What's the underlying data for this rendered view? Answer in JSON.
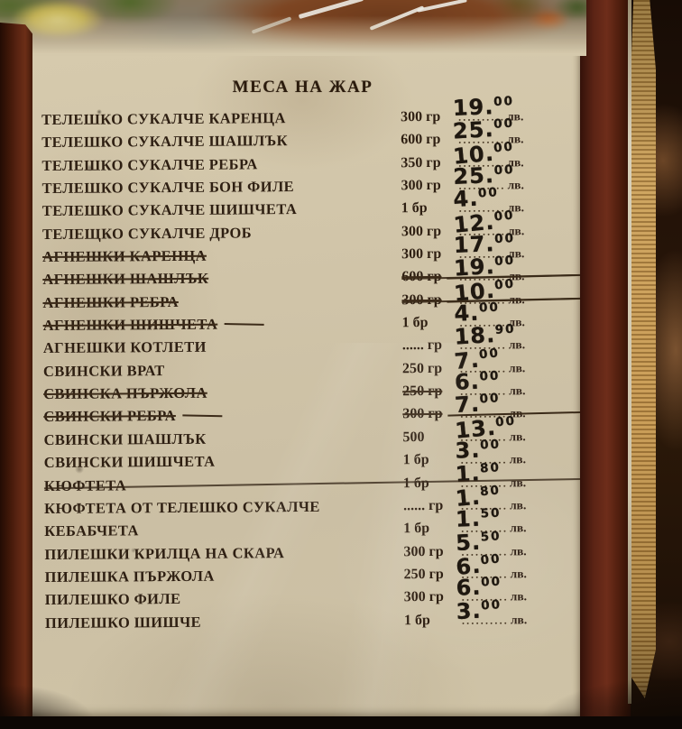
{
  "title": "МЕСА НА ЖАР",
  "page": {
    "currency": "лв.",
    "weight_unit_grams": "гр",
    "weight_unit_piece": "бр"
  },
  "colors": {
    "parchment": "#cfc3a6",
    "frame_wood": "#5a2412",
    "gold_edges": "#c79b55",
    "ink_printed": "#2e1f12",
    "ink_handwritten": "#1f1810"
  },
  "items": [
    {
      "name": "ТЕЛЕШКО СУКАЛЧЕ КАРЕНЦА",
      "weight": "300 гр",
      "price": "19.00",
      "price_main": "19",
      "price_sup": "00",
      "strike": {
        "name": false,
        "weight": false,
        "price": false,
        "tail": false,
        "line": "none"
      }
    },
    {
      "name": "ТЕЛЕШКО СУКАЛЧЕ ШАШЛЪК",
      "weight": "600 гр",
      "price": "25.00",
      "price_main": "25",
      "price_sup": "00",
      "strike": {
        "name": false,
        "weight": false,
        "price": false,
        "tail": false,
        "line": "none"
      }
    },
    {
      "name": "ТЕЛЕШКО СУКАЛЧЕ РЕБРА",
      "weight": "350 гр",
      "price": "10.00",
      "price_main": "10",
      "price_sup": "00",
      "strike": {
        "name": false,
        "weight": false,
        "price": false,
        "tail": false,
        "line": "none"
      }
    },
    {
      "name": "ТЕЛЕШКО СУКАЛЧЕ БОН ФИЛЕ",
      "weight": "300 гр",
      "price": "25.00",
      "price_main": "25",
      "price_sup": "00",
      "strike": {
        "name": false,
        "weight": false,
        "price": false,
        "tail": false,
        "line": "none"
      }
    },
    {
      "name": "ТЕЛЕШКО СУКАЛЧЕ ШИШЧЕТА",
      "weight": "1 бр",
      "price": "4.00",
      "price_main": "4",
      "price_sup": "00",
      "strike": {
        "name": false,
        "weight": false,
        "price": false,
        "tail": false,
        "line": "none"
      }
    },
    {
      "name": "ТЕЛЕЩКО СУКАЛЧЕ ДРОБ",
      "weight": "300 гр",
      "price": "12.00",
      "price_main": "12",
      "price_sup": "00",
      "strike": {
        "name": false,
        "weight": false,
        "price": false,
        "tail": false,
        "line": "none"
      }
    },
    {
      "name": "АГНЕШКИ КАРЕНЦА",
      "weight": "300 гр",
      "price": "17.00",
      "price_main": "17",
      "price_sup": "00",
      "strike": {
        "name": true,
        "weight": false,
        "price": false,
        "tail": false,
        "line": "none"
      }
    },
    {
      "name": "АГНЕШКИ ШАШЛЪК",
      "weight": "600 гр",
      "price": "19.00",
      "price_main": "19",
      "price_sup": "00",
      "strike": {
        "name": true,
        "weight": true,
        "price": true,
        "tail": false,
        "line": "wp"
      }
    },
    {
      "name": "АГНЕШКИ РЕБРА",
      "weight": "300 гр",
      "price": "10.00",
      "price_main": "10",
      "price_sup": "00",
      "strike": {
        "name": true,
        "weight": true,
        "price": true,
        "tail": false,
        "line": "wp"
      }
    },
    {
      "name": "АГНЕШКИ ШИШЧЕТА",
      "weight": "1 бр",
      "price": "4.00",
      "price_main": "4",
      "price_sup": "00",
      "strike": {
        "name": true,
        "weight": false,
        "price": false,
        "tail": true,
        "line": "none"
      }
    },
    {
      "name": "АГНЕШКИ КОТЛЕТИ",
      "weight": "...... гр",
      "price": "18.90",
      "price_main": "18",
      "price_sup": "90",
      "strike": {
        "name": false,
        "weight": false,
        "price": false,
        "tail": false,
        "line": "none"
      }
    },
    {
      "name": "СВИНСКИ ВРАТ",
      "weight": "250 гр",
      "price": "7.00",
      "price_main": "7",
      "price_sup": "00",
      "strike": {
        "name": false,
        "weight": false,
        "price": false,
        "tail": false,
        "line": "none"
      }
    },
    {
      "name": "СВИНСКА ПЪРЖОЛА",
      "weight": "250 гр",
      "price": "6.00",
      "price_main": "6",
      "price_sup": "00",
      "strike": {
        "name": true,
        "weight": true,
        "price": false,
        "tail": false,
        "line": "none"
      }
    },
    {
      "name": "СВИНСКИ РЕБРА",
      "weight": "300 гр",
      "price": "7.00",
      "price_main": "7",
      "price_sup": "00",
      "strike": {
        "name": true,
        "weight": true,
        "price": true,
        "tail": true,
        "line": "none"
      }
    },
    {
      "name": "СВИНСКИ ШАШЛЪК",
      "weight": "500",
      "price": "13.00",
      "price_main": "13",
      "price_sup": "00",
      "strike": {
        "name": false,
        "weight": false,
        "price": false,
        "tail": false,
        "line": "none"
      }
    },
    {
      "name": "СВИНСКИ ШИШЧЕТА",
      "weight": "1 бр",
      "price": "3.00",
      "price_main": "3",
      "price_sup": "00",
      "strike": {
        "name": false,
        "weight": false,
        "price": false,
        "tail": false,
        "line": "none"
      }
    },
    {
      "name": "КЮФТЕТА",
      "weight": "1 бр",
      "price": "1.80",
      "price_main": "1",
      "price_sup": "80",
      "strike": {
        "name": false,
        "weight": false,
        "price": false,
        "tail": false,
        "line": "row"
      }
    },
    {
      "name": "КЮФТЕТА ОТ ТЕЛЕШКО СУКАЛЧЕ",
      "weight": "...... гр",
      "price": "1.80",
      "price_main": "1",
      "price_sup": "80",
      "strike": {
        "name": false,
        "weight": false,
        "price": false,
        "tail": false,
        "line": "none"
      }
    },
    {
      "name": "КЕБАБЧЕТА",
      "weight": "1 бр",
      "price": "1.50",
      "price_main": "1",
      "price_sup": "50",
      "strike": {
        "name": false,
        "weight": false,
        "price": false,
        "tail": false,
        "line": "none"
      }
    },
    {
      "name": "ПИЛЕШКИ КРИЛЦА НА СКАРА",
      "weight": "300 гр",
      "price": "5.50",
      "price_main": "5",
      "price_sup": "50",
      "strike": {
        "name": false,
        "weight": false,
        "price": false,
        "tail": false,
        "line": "none"
      }
    },
    {
      "name": "ПИЛЕШКА ПЪРЖОЛА",
      "weight": "250 гр",
      "price": "6.00",
      "price_main": "6",
      "price_sup": "00",
      "strike": {
        "name": false,
        "weight": false,
        "price": false,
        "tail": false,
        "line": "none"
      }
    },
    {
      "name": "ПИЛЕШКО ФИЛЕ",
      "weight": "300 гр",
      "price": "6.00",
      "price_main": "6",
      "price_sup": "00",
      "strike": {
        "name": false,
        "weight": false,
        "price": false,
        "tail": false,
        "line": "none"
      }
    },
    {
      "name": "ПИЛЕШКО ШИШЧЕ",
      "weight": "1 бр",
      "price": "3.00",
      "price_main": "3",
      "price_sup": "00",
      "strike": {
        "name": false,
        "weight": false,
        "price": false,
        "tail": false,
        "line": "none"
      }
    }
  ]
}
